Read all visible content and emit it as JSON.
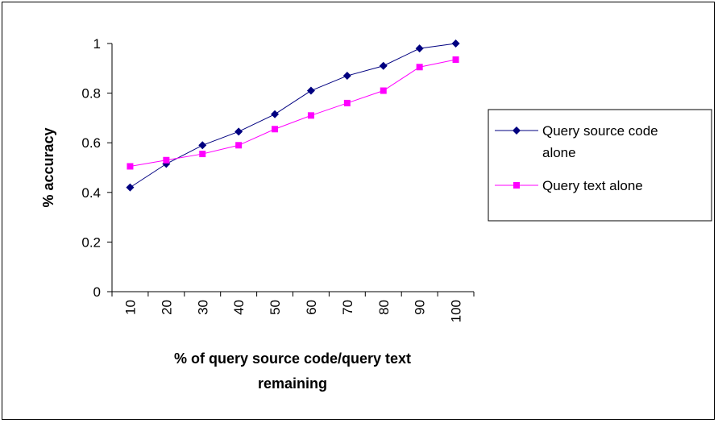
{
  "chart_data": {
    "type": "line",
    "title": "",
    "ylabel": "% accuracy",
    "xlabel_lines": [
      "% of query source code/query text",
      "remaining"
    ],
    "categories": [
      "10",
      "20",
      "30",
      "40",
      "50",
      "60",
      "70",
      "80",
      "90",
      "100"
    ],
    "ylim": [
      0,
      1
    ],
    "yticks": [
      "0",
      "0.2",
      "0.4",
      "0.6",
      "0.8",
      "1"
    ],
    "ytick_values": [
      0,
      0.2,
      0.4,
      0.6,
      0.8,
      1
    ],
    "legend_position": "right",
    "grid": false,
    "series": [
      {
        "name": "Query source code alone",
        "name_lines": [
          "Query source code",
          "alone"
        ],
        "color": "#000080",
        "marker": "diamond",
        "values": [
          0.42,
          0.515,
          0.59,
          0.645,
          0.715,
          0.81,
          0.87,
          0.91,
          0.98,
          1.0
        ]
      },
      {
        "name": "Query text alone",
        "name_lines": [
          "Query text alone"
        ],
        "color": "#ff00ff",
        "marker": "square",
        "values": [
          0.505,
          0.53,
          0.555,
          0.59,
          0.655,
          0.71,
          0.76,
          0.81,
          0.905,
          0.935
        ]
      }
    ]
  }
}
